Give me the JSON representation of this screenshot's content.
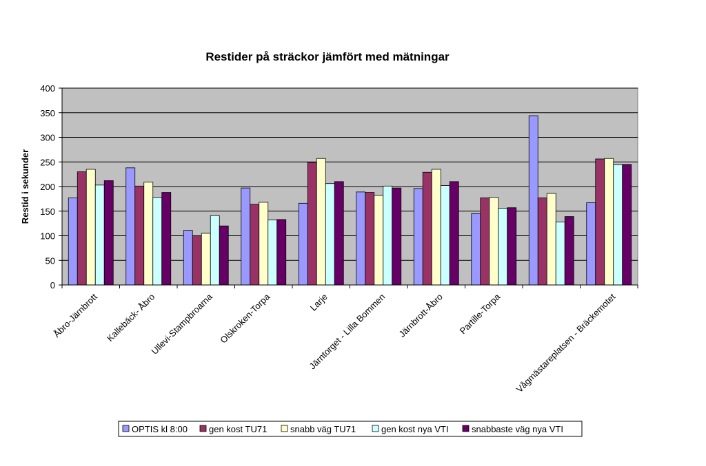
{
  "chart_data": {
    "type": "bar",
    "title": "Restider på sträckor jämfört med mätningar",
    "xlabel": "",
    "ylabel": "Restid i sekunder",
    "ylim": [
      0,
      400
    ],
    "yticks": [
      0,
      50,
      100,
      150,
      200,
      250,
      300,
      350,
      400
    ],
    "grid": true,
    "legend_position": "bottom",
    "categories": [
      "Åbro-Järnbrott",
      "Kallebäck- Åbro",
      "Ullevi-Stampbroarna",
      "Olskroken-Torpa",
      "Larje",
      "Järntorget - Lilla Bommen",
      "Järnbrott-Åbro",
      "Partille-Torpa",
      "",
      "Vågmästareplatsen - Bräckemotet"
    ],
    "series": [
      {
        "name": "OPTIS kl 8:00",
        "color": "#9999FF",
        "values": [
          177,
          238,
          111,
          197,
          166,
          189,
          196,
          145,
          344,
          167
        ]
      },
      {
        "name": "gen kost TU71",
        "color": "#993366",
        "values": [
          230,
          201,
          100,
          164,
          249,
          188,
          229,
          177,
          177,
          256
        ]
      },
      {
        "name": "snabb väg TU71",
        "color": "#FFFFCC",
        "values": [
          235,
          209,
          105,
          168,
          257,
          182,
          235,
          178,
          186,
          257
        ]
      },
      {
        "name": "gen kost nya VTI",
        "color": "#CCFFFF",
        "values": [
          203,
          178,
          141,
          132,
          206,
          201,
          202,
          156,
          128,
          244
        ]
      },
      {
        "name": "snabbaste väg nya VTI",
        "color": "#660066",
        "values": [
          212,
          188,
          120,
          133,
          210,
          197,
          210,
          157,
          139,
          245
        ]
      }
    ],
    "plot_background": "#C0C0C0"
  }
}
